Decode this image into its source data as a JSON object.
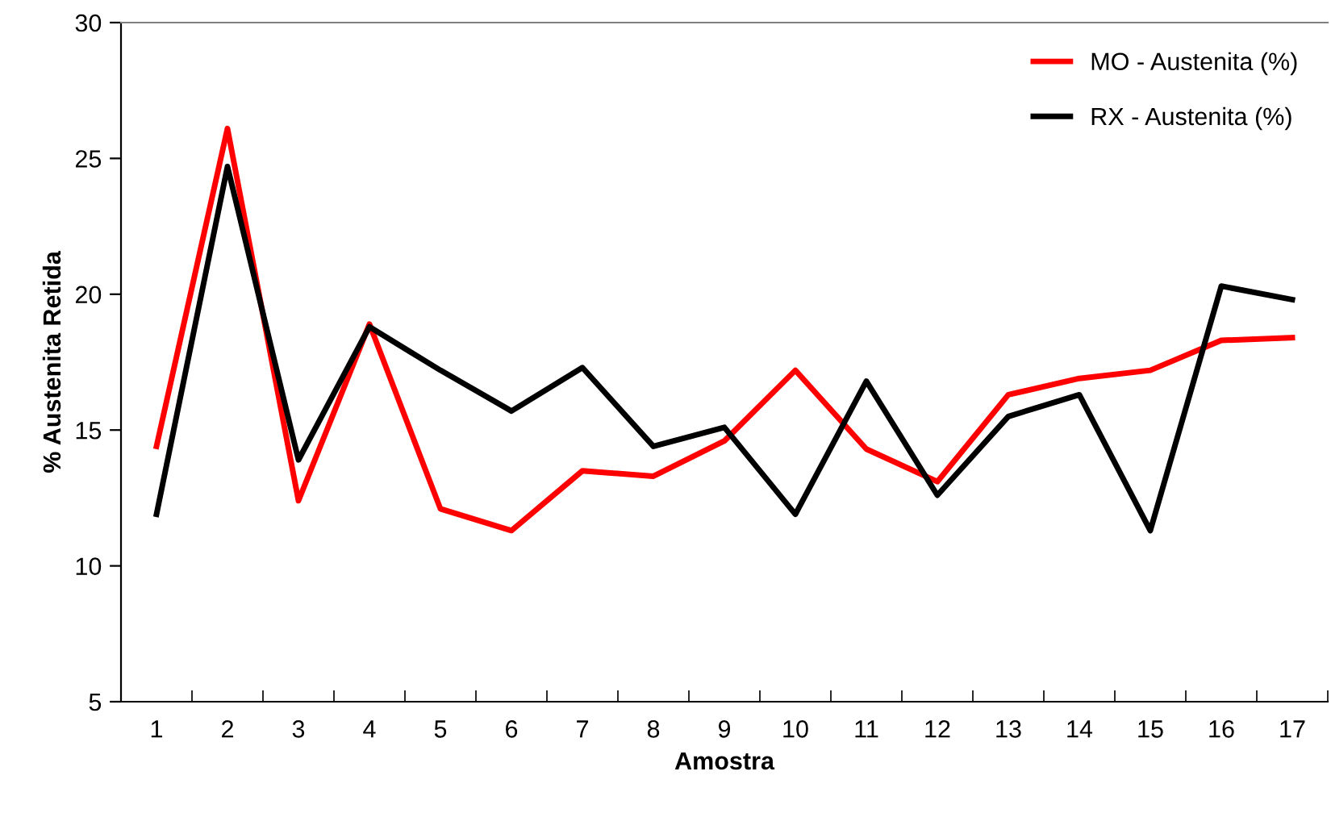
{
  "chart_data": {
    "type": "line",
    "xlabel": "Amostra",
    "ylabel": "% Austenita Retida",
    "categories": [
      "1",
      "2",
      "3",
      "4",
      "5",
      "6",
      "7",
      "8",
      "9",
      "10",
      "11",
      "12",
      "13",
      "14",
      "15",
      "16",
      "17"
    ],
    "series": [
      {
        "name": "MO - Austenita (%)",
        "color": "#ff0000",
        "values": [
          14.4,
          26.1,
          12.4,
          18.9,
          12.1,
          11.3,
          13.5,
          13.3,
          14.6,
          17.2,
          14.3,
          13.1,
          16.3,
          16.9,
          17.2,
          18.3,
          18.4
        ]
      },
      {
        "name": "RX - Austenita (%)",
        "color": "#000000",
        "values": [
          11.9,
          24.7,
          13.9,
          18.8,
          17.2,
          15.7,
          17.3,
          14.4,
          15.1,
          11.9,
          16.8,
          12.6,
          15.5,
          16.3,
          11.3,
          20.3,
          19.8
        ]
      }
    ],
    "ylim": [
      5,
      30
    ],
    "yticks": [
      5,
      10,
      15,
      20,
      25,
      30
    ],
    "grid": false,
    "legend": "top right",
    "marker": "none",
    "line_style": "solid"
  }
}
